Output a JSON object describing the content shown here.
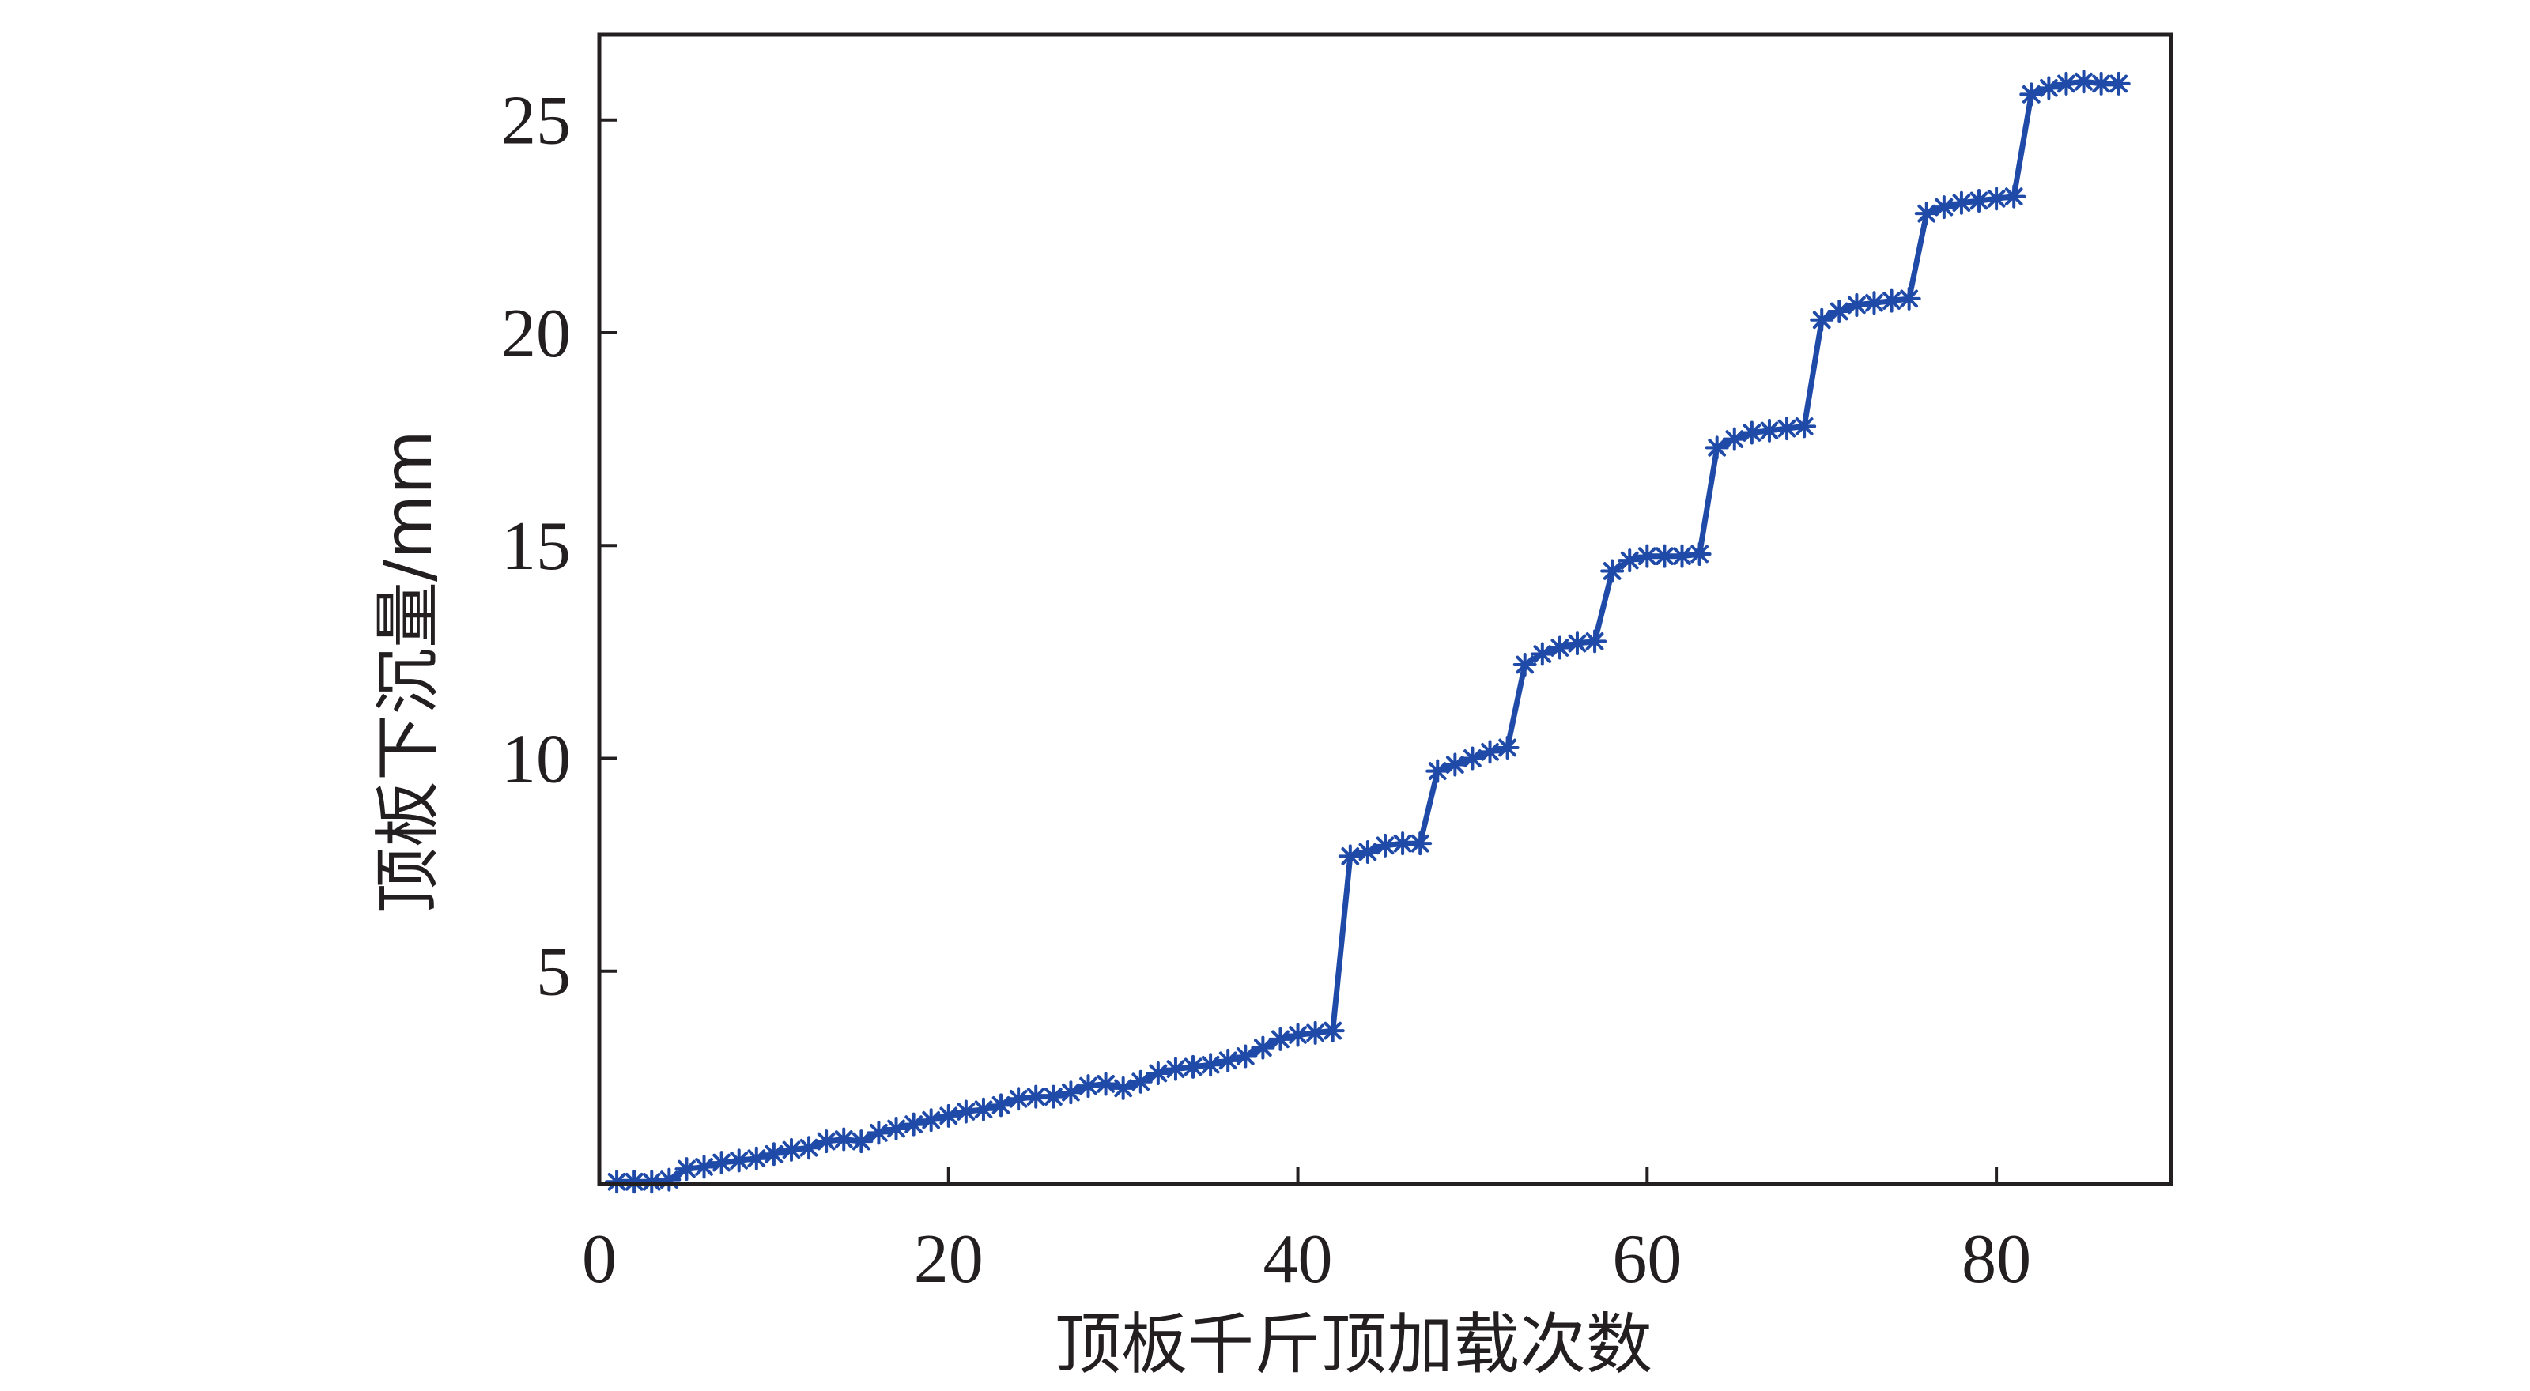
{
  "chart_data": {
    "type": "line",
    "title": "",
    "xlabel": "顶板千斤顶加载次数",
    "ylabel": "顶板下沉量/mm",
    "xlim": [
      0,
      90
    ],
    "ylim": [
      0,
      27
    ],
    "xticks": [
      0,
      20,
      40,
      60,
      80
    ],
    "yticks": [
      5,
      10,
      15,
      20,
      25
    ],
    "tick_labels_x": [
      "0",
      "20",
      "40",
      "60",
      "80"
    ],
    "tick_labels_y": [
      "5",
      "10",
      "15",
      "20",
      "25"
    ],
    "grid": false,
    "marker": "asterisk",
    "colors": {
      "series": "#1f4aa8",
      "axis": "#231f20"
    },
    "series": [
      {
        "x": [
          1,
          2,
          3,
          4,
          5,
          6,
          7,
          8,
          9,
          10,
          11,
          12,
          13,
          14,
          15,
          16,
          17,
          18,
          19,
          20,
          21,
          22,
          23,
          24,
          25,
          26,
          27,
          28,
          29,
          30,
          31,
          32,
          33,
          34,
          35,
          36,
          37,
          38,
          39,
          40,
          41,
          42,
          43,
          44,
          45,
          46,
          47,
          48,
          49,
          50,
          51,
          52,
          53,
          54,
          55,
          56,
          57,
          58,
          59,
          60,
          61,
          62,
          63,
          64,
          65,
          66,
          67,
          68,
          69,
          70,
          71,
          72,
          73,
          74,
          75,
          76,
          77,
          78,
          79,
          80,
          81,
          82,
          83,
          84,
          85,
          86,
          87
        ],
        "y": [
          0.05,
          0.05,
          0.05,
          0.1,
          0.35,
          0.4,
          0.5,
          0.55,
          0.6,
          0.7,
          0.8,
          0.85,
          1.0,
          1.05,
          1.0,
          1.2,
          1.3,
          1.4,
          1.5,
          1.6,
          1.7,
          1.75,
          1.85,
          2.0,
          2.05,
          2.05,
          2.15,
          2.3,
          2.35,
          2.25,
          2.4,
          2.6,
          2.7,
          2.75,
          2.8,
          2.9,
          3.0,
          3.2,
          3.4,
          3.5,
          3.55,
          3.6,
          7.7,
          7.8,
          7.95,
          8.0,
          8.0,
          9.7,
          9.85,
          10.0,
          10.15,
          10.25,
          12.2,
          12.45,
          12.6,
          12.7,
          12.75,
          14.4,
          14.65,
          14.75,
          14.75,
          14.75,
          14.8,
          17.3,
          17.5,
          17.65,
          17.7,
          17.75,
          17.8,
          20.3,
          20.5,
          20.65,
          20.7,
          20.75,
          20.8,
          22.8,
          22.95,
          23.05,
          23.1,
          23.15,
          23.2,
          25.6,
          25.75,
          25.85,
          25.9,
          25.85,
          25.85
        ]
      }
    ]
  }
}
